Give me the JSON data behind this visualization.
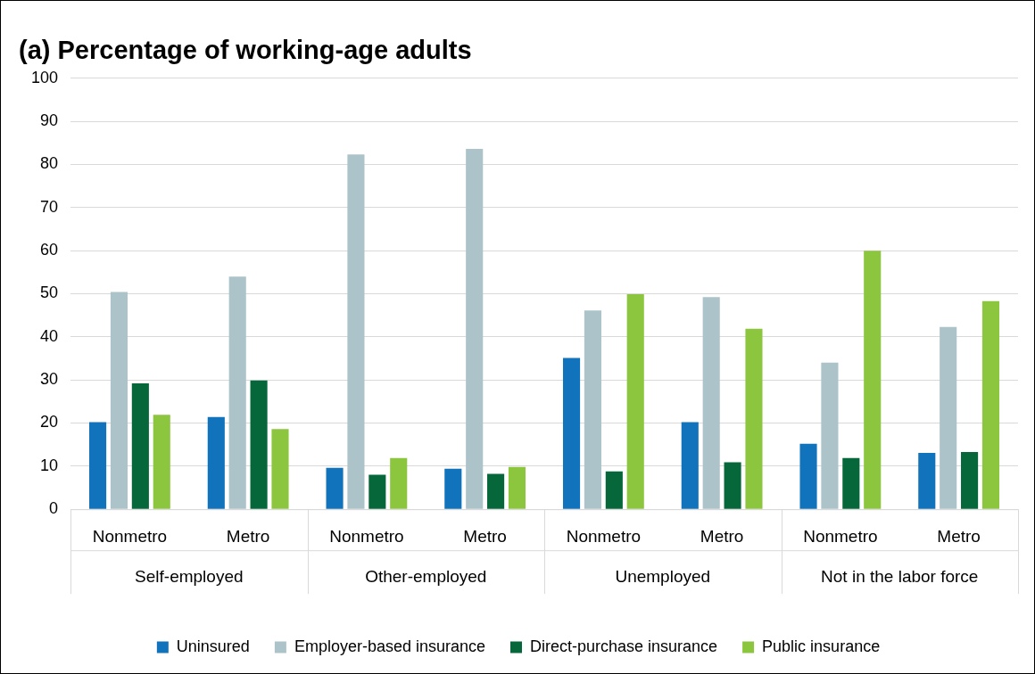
{
  "chart_data": {
    "type": "bar",
    "title": "(a) Percentage of working-age adults",
    "categories": [
      "Nonmetro",
      "Metro",
      "Nonmetro",
      "Metro",
      "Nonmetro",
      "Metro",
      "Nonmetro",
      "Metro"
    ],
    "annotations": [
      "Self-employed",
      "Other-employed",
      "Unemployed",
      "Not in the labor force"
    ],
    "series": [
      {
        "name": "Uninsured",
        "color": "#1173bb",
        "values": [
          20.2,
          21.4,
          9.6,
          9.4,
          35.1,
          20.2,
          15.2,
          13.1
        ]
      },
      {
        "name": "Employer-based insurance",
        "color": "#acc3c9",
        "values": [
          50.4,
          54.0,
          82.3,
          83.6,
          46.1,
          49.2,
          34.0,
          42.3
        ]
      },
      {
        "name": "Direct-purchase insurance",
        "color": "#06683a",
        "values": [
          29.2,
          29.9,
          8.0,
          8.2,
          8.8,
          10.9,
          11.9,
          13.3
        ]
      },
      {
        "name": "Public insurance",
        "color": "#8cc63f",
        "values": [
          21.9,
          18.6,
          11.9,
          9.8,
          49.9,
          41.9,
          60.0,
          48.3
        ]
      }
    ],
    "ylim": [
      0,
      100
    ],
    "yticks": [
      0,
      10,
      20,
      30,
      40,
      50,
      60,
      70,
      80,
      90,
      100
    ],
    "grid": "y",
    "legend": "bottom"
  }
}
